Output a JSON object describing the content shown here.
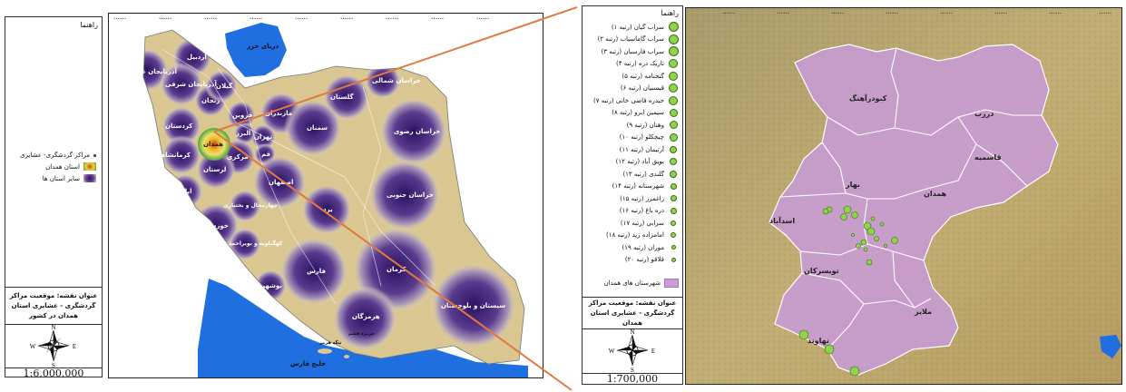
{
  "left_map": {
    "legend": {
      "title": "راهنما",
      "items": [
        {
          "label": "مراکز گردشگری- عشایری",
          "symbol": "dot-icon"
        },
        {
          "label": "استان همدان",
          "symbol": "hamedan-gradient-swatch"
        },
        {
          "label": "سایر استان ها",
          "symbol": "province-gradient-swatch"
        }
      ]
    },
    "title_lines": [
      "عنوان نقشه: موقعیت مراکز",
      "گردشگری - عشایری استان همدان در کشور"
    ],
    "scale": "1:6,000,000",
    "compass": {
      "n": "N",
      "s": "S",
      "e": "E",
      "w": "W"
    },
    "water_labels": {
      "caspian": "دریای خزر",
      "gulf": "خلیج فارس",
      "hormuz": "تنگه هرمز",
      "qeshm": "جزیره قشم"
    },
    "provinces": [
      "آذربایجان غربی",
      "اردبیل",
      "آذربایجان شرقی",
      "زنجان",
      "گیلان",
      "کردستان",
      "قزوین",
      "مازندران",
      "گلستان",
      "خراسان شمالی",
      "تهران",
      "البرز",
      "همدان",
      "قم",
      "سمنان",
      "خراسان رضوی",
      "کرمانشاه",
      "مرکزی",
      "ایلام",
      "لرستان",
      "اصفهان",
      "خراسان جنوبی",
      "چهارمحال و بختیاری",
      "یزد",
      "خوزستان",
      "کهگیلویه و بویراحمد",
      "کرمان",
      "فارس",
      "بوشهر",
      "هرمزگان",
      "سیستان و بلوچستان"
    ],
    "colors": {
      "province_center": "#2a1360",
      "province_edge": "#f0e6c8",
      "background_land": "#d9c690",
      "water": "#1f6fe0",
      "hamedan_center": "#d83a1a"
    }
  },
  "right_map": {
    "legend": {
      "title": "راهنما",
      "items": [
        "سراب گیان (رتبه ۱)",
        "سراب گاماسیاب (رتبه ۲)",
        "سراب فارسبان (رتبه ۳)",
        "تاریک دره (رتبه ۴)",
        "گنجنامه (رتبه ۵)",
        "قیسبیان (رتبه ۶)",
        "حیدره قاضی خانی (رتبه ۷)",
        "سیمین ابرو (رتبه ۸)",
        "وهنان (رتبه ۹)",
        "چیچکلو (رتبه ۱۰)",
        "آرتیمان (رتبه ۱۱)",
        "بویق آباد (رتبه ۱۲)",
        "گلندی (رتبه ۱۳)",
        "شهرستانه (رتبه ۱۴)",
        "زاغمرز (رتبه ۱۵)",
        "دره باغ (رتبه ۱۶)",
        "سرابی (رتبه ۱۷)",
        "امامزاده زید (رتبه ۱۸)",
        "موران (رتبه ۱۹)",
        "قلاقو (رتبه ۲۰)"
      ],
      "county_item": "شهرستان های همدان"
    },
    "title_lines": [
      "عنوان نقشه: موقعیت مراکز",
      "گردشگری - عشایری استان همدان"
    ],
    "scale": "1:700,000",
    "compass": {
      "n": "N",
      "s": "S",
      "e": "E",
      "w": "W"
    },
    "counties": [
      "کبودرآهنگ",
      "درزب",
      "بهار",
      "قاسمیه",
      "اسدآباد",
      "همدان",
      "تویسرکان",
      "ملایر",
      "نهاوند"
    ],
    "colors": {
      "county_fill": "#c89ad8",
      "county_stroke": "#ffffff",
      "point": "#8ed34a",
      "relief": "#b7a36a"
    }
  },
  "connector_color": "#e07a3a"
}
